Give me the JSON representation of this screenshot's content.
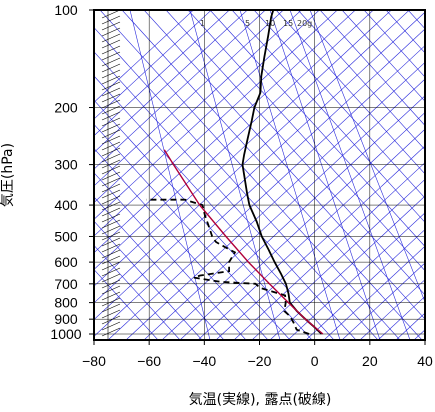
{
  "chart_data": {
    "type": "line",
    "title": "",
    "xlabel": "気温(実線), 露点(破線)",
    "ylabel": "気圧(hPa)",
    "xlim": [
      -80,
      40
    ],
    "ylim": [
      1050,
      100
    ],
    "y_scale": "log",
    "grid": true,
    "x_ticks": [
      -80,
      -60,
      -40,
      -20,
      0,
      20,
      40
    ],
    "x_tick_labels": [
      "−80",
      "−60",
      "−40",
      "−20",
      "0",
      "20",
      "40"
    ],
    "y_ticks": [
      100,
      200,
      300,
      400,
      500,
      600,
      700,
      800,
      900,
      1000
    ],
    "y_tick_labels": [
      "100",
      "200",
      "300",
      "400",
      "500",
      "600",
      "700",
      "800",
      "900",
      "1000"
    ],
    "mixing_ratio_labels": [
      "1",
      "5",
      "10",
      "15",
      "20g"
    ],
    "colors": {
      "temperature": "#000000",
      "dewpoint": "#000000",
      "parcel": "#b0003a",
      "background_lines": "#2b2bdc",
      "grid": "#000000"
    },
    "series": [
      {
        "style": "solid",
        "values": [
          [
            1000,
            2.5
          ],
          [
            950,
            -1
          ],
          [
            900,
            -5
          ],
          [
            850,
            -9
          ],
          [
            800,
            -12.5
          ],
          [
            750,
            -14
          ],
          [
            700,
            -16
          ],
          [
            650,
            -19
          ],
          [
            600,
            -22.5
          ],
          [
            550,
            -26
          ],
          [
            500,
            -30
          ],
          [
            450,
            -33.5
          ],
          [
            400,
            -38
          ],
          [
            370,
            -40
          ],
          [
            340,
            -42
          ],
          [
            300,
            -45
          ],
          [
            280,
            -45.5
          ],
          [
            250,
            -46
          ],
          [
            220,
            -46.5
          ],
          [
            200,
            -47
          ],
          [
            180,
            -46.5
          ],
          [
            160,
            -48
          ],
          [
            140,
            -49
          ],
          [
            120,
            -50
          ],
          [
            105,
            -51
          ],
          [
            100,
            -51
          ]
        ]
      },
      {
        "style": "dashed",
        "values": [
          [
            1000,
            -2
          ],
          [
            970,
            -7
          ],
          [
            920,
            -9
          ],
          [
            880,
            -11
          ],
          [
            850,
            -13.5
          ],
          [
            800,
            -14
          ],
          [
            760,
            -15
          ],
          [
            740,
            -20
          ],
          [
            720,
            -25
          ],
          [
            700,
            -27
          ],
          [
            690,
            -40
          ],
          [
            670,
            -50
          ],
          [
            660,
            -48
          ],
          [
            640,
            -38
          ],
          [
            600,
            -39
          ],
          [
            560,
            -38
          ],
          [
            540,
            -42
          ],
          [
            520,
            -46
          ],
          [
            500,
            -48
          ],
          [
            470,
            -50
          ],
          [
            430,
            -53
          ],
          [
            400,
            -55
          ],
          [
            385,
            -62
          ],
          [
            385,
            -76
          ]
        ]
      },
      {
        "style": "parcel",
        "values": [
          [
            1000,
            3
          ],
          [
            900,
            -5
          ],
          [
            800,
            -13
          ],
          [
            700,
            -22
          ],
          [
            600,
            -32
          ],
          [
            500,
            -43
          ],
          [
            400,
            -56
          ],
          [
            300,
            -70
          ],
          [
            270,
            -75
          ]
        ]
      }
    ],
    "wind_barbs": "present"
  }
}
